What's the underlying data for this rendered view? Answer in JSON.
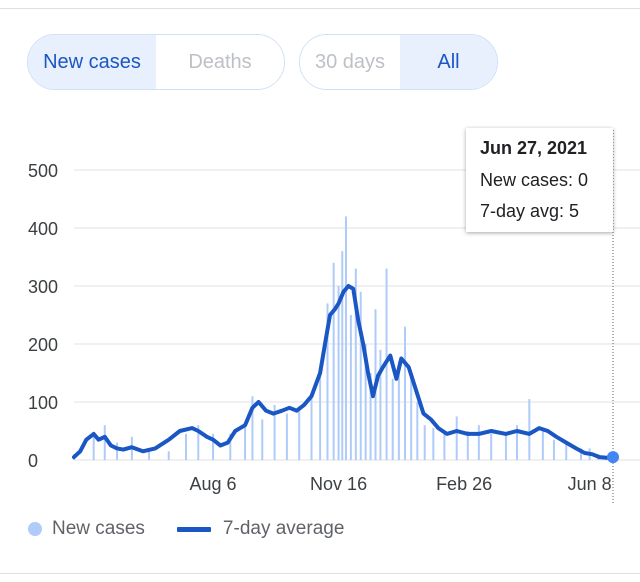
{
  "toggles": {
    "metric": {
      "options": [
        "New cases",
        "Deaths"
      ],
      "selected": "New cases"
    },
    "range": {
      "options": [
        "30 days",
        "All"
      ],
      "selected": "All"
    }
  },
  "tooltip": {
    "date": "Jun 27, 2021",
    "new_cases": "New cases: 0",
    "avg": "7-day avg: 5"
  },
  "legend": {
    "bars": "New cases",
    "line": "7-day average"
  },
  "colors": {
    "bars": "#aecbfa",
    "line": "#1a56c4",
    "grid": "#e0e0e0",
    "marker": "#4285f4"
  },
  "chart_data": {
    "type": "bar",
    "title": "",
    "xlabel": "",
    "ylabel": "",
    "ylim": [
      0,
      500
    ],
    "yticks": [
      "0",
      "100",
      "200",
      "300",
      "400",
      "500"
    ],
    "ytick_values": [
      0,
      100,
      200,
      300,
      400,
      500
    ],
    "xticks": [
      "Aug 6",
      "Nov 16",
      "Feb 26",
      "Jun 8"
    ],
    "xtick_positions": [
      "2020-08-06",
      "2020-11-16",
      "2021-02-26",
      "2021-06-08"
    ],
    "x_range": [
      "2020-04-15",
      "2021-06-27"
    ],
    "grid": true,
    "legend_position": "bottom-left",
    "series": [
      {
        "name": "New cases",
        "type": "bar",
        "x": [
          "2020-04-15",
          "2020-05-01",
          "2020-05-10",
          "2020-05-20",
          "2020-06-01",
          "2020-06-15",
          "2020-07-01",
          "2020-07-15",
          "2020-07-25",
          "2020-08-06",
          "2020-08-20",
          "2020-09-01",
          "2020-09-07",
          "2020-09-15",
          "2020-09-25",
          "2020-10-05",
          "2020-10-15",
          "2020-10-25",
          "2020-11-01",
          "2020-11-07",
          "2020-11-12",
          "2020-11-16",
          "2020-11-19",
          "2020-11-22",
          "2020-11-26",
          "2020-11-30",
          "2020-12-04",
          "2020-12-08",
          "2020-12-12",
          "2020-12-16",
          "2020-12-20",
          "2020-12-25",
          "2020-12-30",
          "2021-01-04",
          "2021-01-09",
          "2021-01-14",
          "2021-01-19",
          "2021-01-25",
          "2021-02-01",
          "2021-02-10",
          "2021-02-20",
          "2021-03-01",
          "2021-03-10",
          "2021-03-20",
          "2021-04-01",
          "2021-04-10",
          "2021-04-20",
          "2021-05-01",
          "2021-05-10",
          "2021-05-20",
          "2021-06-01",
          "2021-06-08",
          "2021-06-15",
          "2021-06-27"
        ],
        "values": [
          10,
          45,
          60,
          30,
          40,
          20,
          15,
          45,
          60,
          45,
          45,
          60,
          110,
          70,
          95,
          80,
          90,
          110,
          160,
          270,
          340,
          300,
          360,
          420,
          250,
          330,
          290,
          200,
          150,
          260,
          190,
          330,
          140,
          170,
          230,
          150,
          100,
          60,
          55,
          50,
          75,
          50,
          60,
          45,
          45,
          60,
          105,
          50,
          35,
          30,
          20,
          20,
          10,
          0
        ]
      },
      {
        "name": "7-day average",
        "type": "line",
        "x": [
          "2020-04-15",
          "2020-04-20",
          "2020-04-25",
          "2020-05-01",
          "2020-05-05",
          "2020-05-10",
          "2020-05-15",
          "2020-05-20",
          "2020-05-25",
          "2020-06-01",
          "2020-06-10",
          "2020-06-20",
          "2020-07-01",
          "2020-07-10",
          "2020-07-20",
          "2020-07-25",
          "2020-08-01",
          "2020-08-06",
          "2020-08-12",
          "2020-08-18",
          "2020-08-24",
          "2020-09-01",
          "2020-09-07",
          "2020-09-12",
          "2020-09-18",
          "2020-09-24",
          "2020-10-01",
          "2020-10-07",
          "2020-10-13",
          "2020-10-19",
          "2020-10-25",
          "2020-11-01",
          "2020-11-05",
          "2020-11-09",
          "2020-11-13",
          "2020-11-16",
          "2020-11-20",
          "2020-11-24",
          "2020-11-28",
          "2020-12-02",
          "2020-12-06",
          "2020-12-10",
          "2020-12-14",
          "2020-12-18",
          "2020-12-22",
          "2020-12-28",
          "2021-01-02",
          "2021-01-06",
          "2021-01-12",
          "2021-01-18",
          "2021-01-24",
          "2021-01-30",
          "2021-02-05",
          "2021-02-12",
          "2021-02-20",
          "2021-03-01",
          "2021-03-10",
          "2021-03-20",
          "2021-04-01",
          "2021-04-10",
          "2021-04-20",
          "2021-04-28",
          "2021-05-05",
          "2021-05-12",
          "2021-05-20",
          "2021-05-28",
          "2021-06-04",
          "2021-06-10",
          "2021-06-16",
          "2021-06-22",
          "2021-06-27"
        ],
        "values": [
          5,
          15,
          35,
          45,
          35,
          40,
          25,
          20,
          18,
          22,
          15,
          20,
          35,
          50,
          55,
          50,
          40,
          35,
          25,
          30,
          50,
          60,
          90,
          100,
          85,
          80,
          85,
          90,
          85,
          95,
          110,
          150,
          200,
          250,
          260,
          270,
          290,
          300,
          295,
          240,
          200,
          150,
          110,
          145,
          160,
          180,
          140,
          175,
          160,
          120,
          80,
          70,
          55,
          45,
          50,
          45,
          45,
          50,
          45,
          50,
          45,
          55,
          50,
          40,
          30,
          20,
          12,
          10,
          5,
          4,
          5
        ]
      }
    ]
  }
}
